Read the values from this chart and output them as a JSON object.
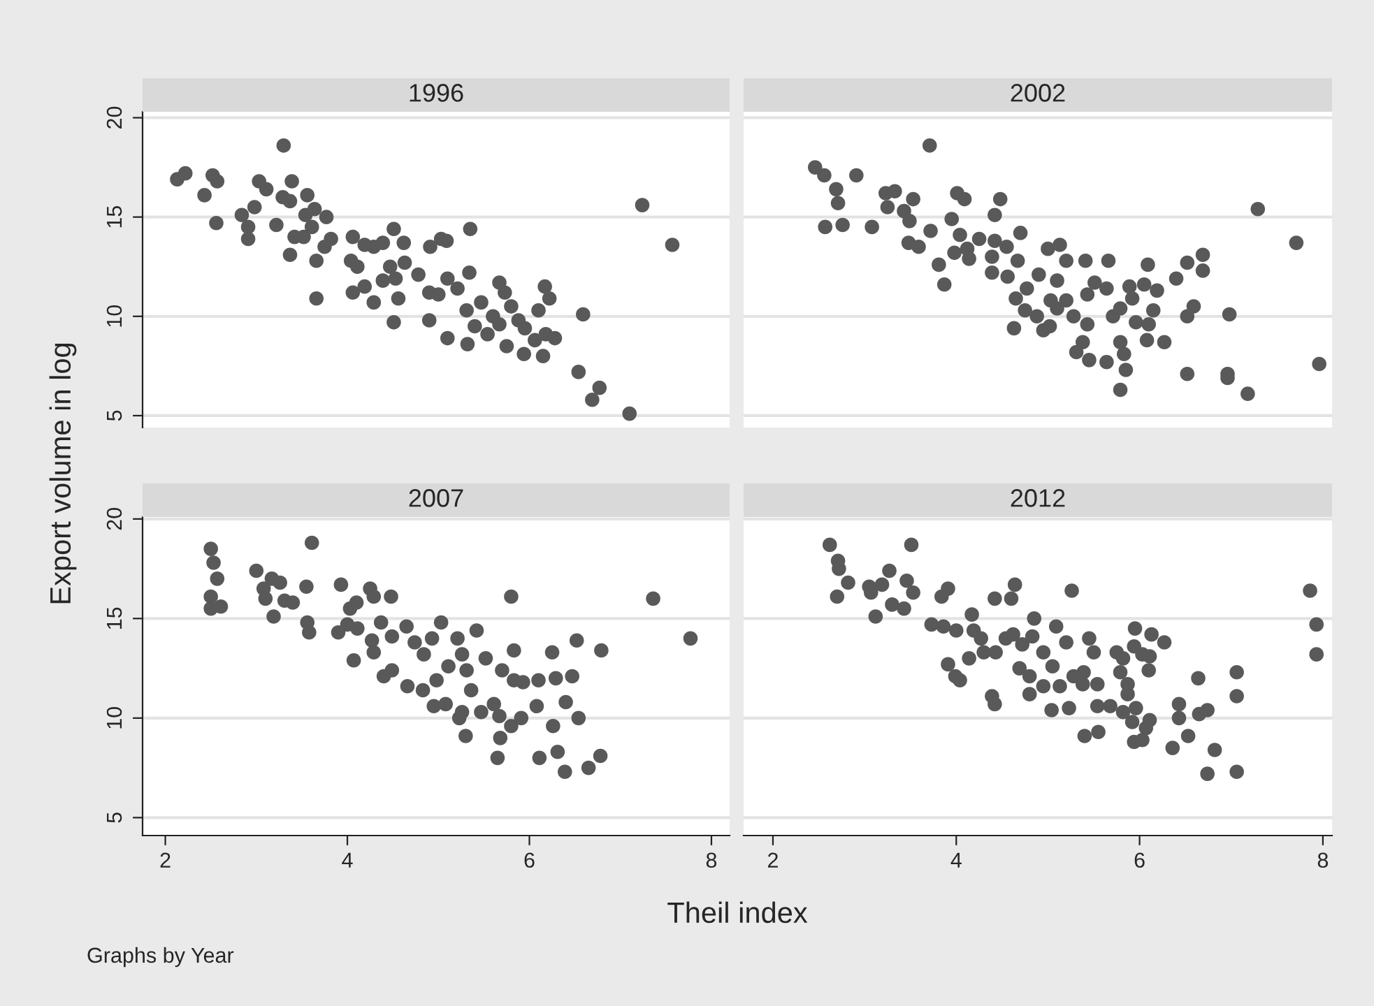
{
  "chart_data": [
    {
      "type": "scatter",
      "title": "1996",
      "xlim": [
        1.75,
        8.2
      ],
      "ylim": [
        4.4,
        20.3
      ],
      "xticks": [
        2,
        4,
        6,
        8
      ],
      "yticks": [
        5,
        10,
        15,
        20
      ],
      "tick_labels": "y",
      "grid": "y",
      "marker": "circle",
      "legend": false,
      "series": [
        {
          "color": "#595959",
          "x": [
            2.13,
            2.22,
            2.43,
            2.52,
            2.57,
            2.56,
            2.84,
            2.91,
            2.91,
            2.98,
            3.03,
            3.11,
            3.22,
            3.3,
            3.29,
            3.37,
            3.39,
            3.37,
            3.56,
            3.54,
            3.64,
            3.61,
            3.77,
            3.42,
            3.52,
            3.82,
            3.75,
            3.66,
            3.66,
            4.06,
            4.19,
            4.29,
            4.39,
            4.51,
            4.62,
            4.04,
            4.11,
            4.63,
            4.06,
            4.19,
            4.29,
            4.39,
            4.47,
            4.53,
            4.56,
            4.51,
            4.78,
            4.9,
            4.9,
            5.0,
            4.91,
            5.03,
            5.09,
            5.35,
            5.1,
            5.1,
            5.21,
            5.34,
            5.31,
            5.32,
            5.4,
            5.47,
            5.6,
            5.67,
            5.73,
            5.8,
            5.54,
            5.67,
            5.75,
            5.88,
            5.95,
            5.94,
            6.1,
            6.17,
            6.22,
            6.06,
            6.18,
            6.28,
            6.15,
            6.59,
            6.54,
            6.77,
            6.69,
            7.1,
            7.24,
            7.57
          ],
          "values": [
            16.9,
            17.2,
            16.1,
            17.1,
            16.8,
            14.7,
            15.1,
            14.5,
            13.9,
            15.5,
            16.8,
            16.4,
            14.6,
            18.6,
            16.0,
            15.8,
            16.8,
            13.1,
            16.1,
            15.1,
            15.4,
            14.5,
            15.0,
            14.0,
            14.0,
            13.9,
            13.5,
            12.8,
            10.9,
            14.0,
            13.6,
            13.5,
            13.7,
            14.4,
            13.7,
            12.8,
            12.5,
            12.7,
            11.2,
            11.5,
            10.7,
            11.8,
            12.5,
            11.9,
            10.9,
            9.7,
            12.1,
            11.2,
            9.8,
            11.1,
            13.5,
            13.9,
            13.8,
            14.4,
            11.9,
            8.9,
            11.4,
            12.2,
            10.3,
            8.6,
            9.5,
            10.7,
            10.0,
            11.7,
            11.2,
            10.5,
            9.1,
            9.6,
            8.5,
            9.8,
            9.4,
            8.1,
            10.3,
            11.5,
            10.9,
            8.8,
            9.1,
            8.9,
            8.0,
            10.1,
            7.2,
            6.4,
            5.8,
            5.1,
            15.6,
            13.6
          ]
        }
      ]
    },
    {
      "type": "scatter",
      "title": "2002",
      "xlim": [
        1.68,
        8.1
      ],
      "ylim": [
        4.4,
        20.3
      ],
      "xticks": [
        2,
        4,
        6,
        8
      ],
      "yticks": [
        5,
        10,
        15,
        20
      ],
      "tick_labels": false,
      "grid": "y",
      "marker": "circle",
      "legend": false,
      "series": [
        {
          "color": "#595959",
          "x": [
            2.46,
            2.56,
            2.69,
            2.71,
            2.57,
            2.76,
            2.91,
            3.08,
            3.23,
            3.33,
            3.25,
            3.71,
            3.43,
            3.53,
            3.49,
            3.48,
            3.59,
            3.72,
            3.81,
            3.87,
            3.95,
            4.01,
            4.09,
            3.98,
            4.04,
            4.12,
            4.14,
            4.25,
            4.42,
            4.48,
            4.39,
            4.42,
            4.39,
            4.55,
            4.67,
            4.56,
            4.7,
            4.63,
            4.65,
            4.77,
            4.75,
            4.88,
            4.9,
            5.0,
            5.13,
            5.2,
            5.1,
            5.03,
            5.1,
            4.95,
            5.02,
            5.2,
            5.28,
            5.43,
            5.41,
            5.38,
            5.31,
            5.45,
            5.51,
            5.64,
            5.66,
            5.64,
            5.43,
            5.71,
            5.79,
            5.89,
            5.92,
            5.96,
            5.79,
            5.83,
            5.85,
            5.79,
            6.05,
            6.09,
            6.19,
            6.15,
            6.1,
            6.08,
            6.27,
            6.4,
            6.52,
            6.69,
            6.69,
            6.52,
            6.59,
            6.52,
            6.98,
            6.96,
            6.96,
            7.18,
            7.29,
            7.71,
            7.96
          ],
          "values": [
            17.5,
            17.1,
            16.4,
            15.7,
            14.5,
            14.6,
            17.1,
            14.5,
            16.2,
            16.3,
            15.5,
            18.6,
            15.3,
            15.9,
            14.8,
            13.7,
            13.5,
            14.3,
            12.6,
            11.6,
            14.9,
            16.2,
            15.9,
            13.2,
            14.1,
            13.4,
            12.9,
            13.9,
            15.1,
            15.9,
            12.2,
            13.8,
            13.0,
            13.5,
            12.8,
            12.0,
            14.2,
            9.4,
            10.9,
            11.4,
            10.3,
            10.0,
            12.1,
            13.4,
            13.6,
            12.8,
            11.8,
            10.8,
            10.4,
            9.3,
            9.5,
            10.8,
            10.0,
            9.6,
            12.8,
            8.7,
            8.2,
            7.8,
            11.7,
            11.4,
            12.8,
            7.7,
            11.1,
            10.0,
            10.4,
            11.5,
            10.9,
            9.7,
            8.7,
            8.1,
            7.3,
            6.3,
            11.6,
            12.6,
            11.3,
            10.3,
            9.6,
            8.8,
            8.7,
            11.9,
            12.7,
            13.1,
            12.3,
            10.0,
            10.5,
            7.1,
            10.1,
            7.1,
            6.9,
            6.1,
            15.4,
            13.7,
            7.6
          ]
        }
      ]
    },
    {
      "type": "scatter",
      "title": "2007",
      "xlabel": "Theil index",
      "ylabel": "Export volume in log",
      "annotations": [
        "Graphs by Year"
      ],
      "xlim": [
        1.75,
        8.2
      ],
      "ylim": [
        4.1,
        20.1
      ],
      "xticks": [
        2,
        4,
        6,
        8
      ],
      "yticks": [
        5,
        10,
        15,
        20
      ],
      "grid": "y",
      "marker": "circle",
      "legend": false,
      "series": [
        {
          "color": "#595959",
          "x": [
            2.5,
            2.53,
            2.57,
            2.5,
            2.5,
            2.61,
            3.61,
            3.0,
            3.08,
            3.17,
            3.26,
            3.1,
            3.19,
            3.31,
            3.4,
            3.55,
            3.56,
            3.58,
            3.93,
            3.9,
            4.0,
            4.03,
            4.1,
            4.25,
            4.29,
            4.48,
            4.11,
            4.07,
            4.27,
            4.29,
            4.37,
            4.49,
            4.65,
            4.4,
            4.49,
            4.66,
            4.74,
            4.84,
            5.03,
            4.93,
            5.21,
            5.42,
            4.83,
            4.95,
            4.98,
            5.08,
            5.11,
            5.26,
            5.31,
            5.36,
            5.52,
            5.26,
            5.23,
            5.3,
            5.47,
            5.61,
            5.67,
            5.65,
            5.68,
            5.8,
            5.83,
            5.7,
            5.83,
            5.93,
            5.8,
            5.91,
            6.1,
            6.08,
            6.11,
            6.25,
            6.29,
            6.4,
            6.26,
            6.31,
            6.39,
            6.47,
            6.52,
            6.54,
            6.79,
            6.65,
            6.78,
            7.36,
            7.77
          ],
          "values": [
            18.5,
            17.8,
            17.0,
            16.1,
            15.5,
            15.6,
            18.8,
            17.4,
            16.5,
            17.0,
            16.8,
            16.0,
            15.1,
            15.9,
            15.8,
            16.6,
            14.8,
            14.3,
            16.7,
            14.3,
            14.7,
            15.5,
            15.8,
            16.5,
            16.1,
            16.1,
            14.5,
            12.9,
            13.9,
            13.3,
            14.8,
            14.1,
            14.6,
            12.1,
            12.4,
            11.6,
            13.8,
            13.2,
            14.8,
            14.0,
            14.0,
            14.4,
            11.4,
            10.6,
            11.9,
            10.7,
            12.6,
            13.2,
            12.4,
            11.4,
            13.0,
            10.3,
            10.0,
            9.1,
            10.3,
            10.7,
            10.1,
            8.0,
            9.0,
            16.1,
            13.4,
            12.4,
            11.9,
            11.8,
            9.6,
            10.0,
            11.9,
            10.6,
            8.0,
            13.3,
            12.0,
            10.8,
            9.6,
            8.3,
            7.3,
            12.1,
            13.9,
            10.0,
            13.4,
            7.5,
            8.1,
            16.0,
            14.0
          ]
        }
      ]
    },
    {
      "type": "scatter",
      "title": "2012",
      "xlim": [
        1.68,
        8.1
      ],
      "ylim": [
        4.1,
        20.1
      ],
      "xticks": [
        2,
        4,
        6,
        8
      ],
      "yticks": [
        5,
        10,
        15,
        20
      ],
      "tick_labels": "x",
      "grid": "y",
      "marker": "circle",
      "legend": false,
      "series": [
        {
          "color": "#595959",
          "x": [
            2.62,
            2.71,
            2.72,
            2.82,
            2.7,
            3.05,
            3.07,
            3.19,
            3.27,
            3.51,
            3.46,
            3.53,
            3.12,
            3.3,
            3.43,
            3.73,
            3.86,
            3.91,
            3.84,
            4.0,
            4.17,
            4.19,
            4.27,
            4.3,
            4.43,
            4.42,
            4.6,
            4.64,
            3.91,
            3.99,
            4.04,
            4.14,
            4.39,
            4.42,
            4.54,
            4.62,
            4.72,
            4.85,
            4.83,
            4.95,
            5.05,
            5.09,
            5.2,
            5.26,
            4.69,
            4.8,
            4.8,
            4.95,
            5.13,
            5.04,
            5.23,
            5.28,
            5.39,
            5.38,
            5.4,
            5.55,
            5.45,
            5.5,
            5.54,
            5.54,
            5.68,
            5.75,
            5.82,
            5.79,
            5.87,
            5.87,
            5.82,
            5.92,
            5.95,
            5.94,
            6.03,
            6.11,
            6.1,
            5.96,
            6.11,
            6.07,
            5.94,
            6.03,
            6.13,
            6.27,
            6.36,
            6.43,
            6.43,
            6.53,
            6.64,
            6.65,
            6.74,
            6.74,
            6.82,
            7.06,
            7.06,
            7.06,
            7.86,
            7.93,
            7.93
          ],
          "values": [
            18.7,
            17.9,
            17.5,
            16.8,
            16.1,
            16.6,
            16.3,
            16.7,
            17.4,
            18.7,
            16.9,
            16.3,
            15.1,
            15.7,
            15.5,
            14.7,
            14.6,
            16.5,
            16.1,
            14.4,
            15.2,
            14.4,
            14.0,
            13.3,
            13.3,
            16.0,
            16.0,
            16.7,
            12.7,
            12.1,
            11.9,
            13.0,
            11.1,
            10.7,
            14.0,
            14.2,
            13.7,
            15.0,
            14.1,
            13.3,
            12.6,
            14.6,
            13.8,
            16.4,
            12.5,
            12.1,
            11.2,
            11.6,
            11.6,
            10.4,
            10.5,
            12.1,
            12.3,
            11.7,
            9.1,
            9.3,
            14.0,
            13.3,
            11.7,
            10.6,
            10.6,
            13.3,
            13.0,
            12.3,
            11.7,
            11.2,
            10.3,
            9.8,
            14.5,
            13.6,
            13.2,
            13.1,
            12.4,
            10.5,
            9.9,
            9.5,
            8.8,
            8.9,
            14.2,
            13.8,
            8.5,
            10.7,
            10.0,
            9.1,
            12.0,
            10.2,
            10.4,
            7.2,
            8.4,
            12.3,
            11.1,
            7.3,
            16.4,
            14.7,
            13.2
          ]
        }
      ]
    }
  ]
}
